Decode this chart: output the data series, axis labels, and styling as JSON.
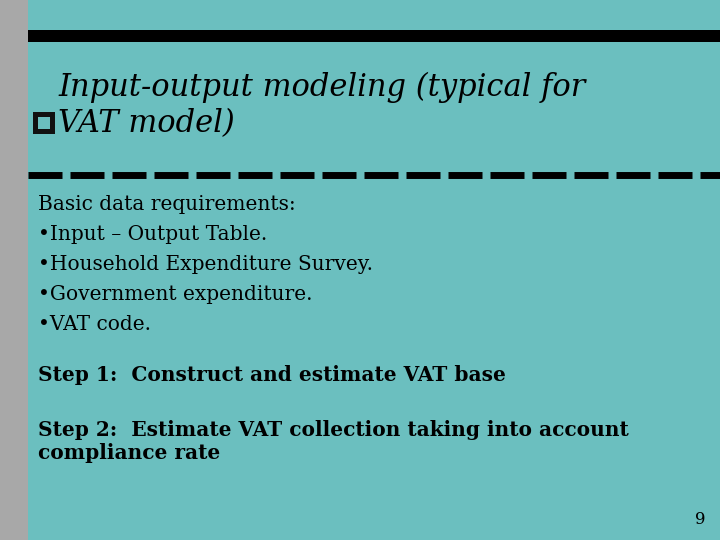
{
  "bg_color": "#6bbfbf",
  "title_line1": "Input-output modeling (typical for",
  "title_line2": "VAT model)",
  "title_fontsize": 22,
  "title_color": "#000000",
  "top_bar_color": "#000000",
  "sidebar_gray": "#a8a8a8",
  "sidebar_teal": "#6bbfbf",
  "bullet_header": "Basic data requirements:",
  "bullets": [
    "•Input – Output Table.",
    "•Household Expenditure Survey.",
    "•Government expenditure.",
    "•VAT code."
  ],
  "step1": "Step 1:  Construct and estimate VAT base",
  "step2": "Step 2:  Estimate VAT collection taking into account\ncompliance rate",
  "body_fontsize": 14.5,
  "step_fontsize": 14.5,
  "page_number": "9"
}
